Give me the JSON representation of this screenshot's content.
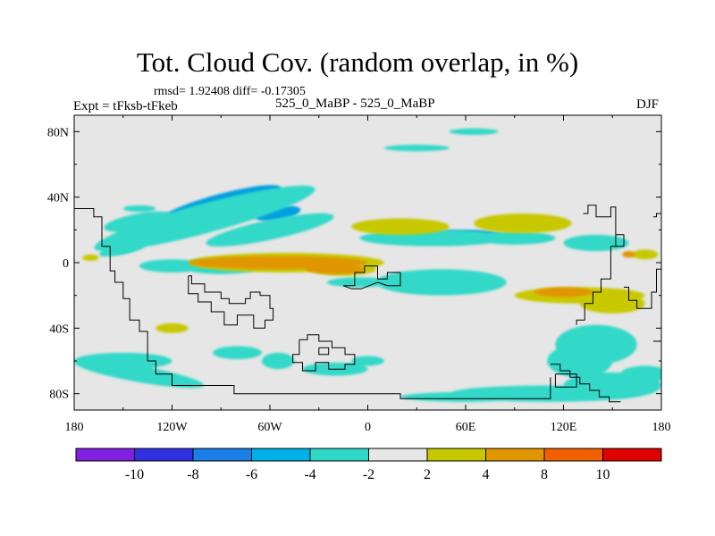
{
  "title": "Tot. Cloud Cov. (random overlap, in %)",
  "stats_line": "rmsd= 1.92408 diff= -0.17305",
  "experiment": "Expt = tFksb-tFkeb",
  "subtitle": "525_0_MaBP - 525_0_MaBP",
  "season": "DJF",
  "map": {
    "projection": "cylindrical-equidistant",
    "background_color": "#e6e6e6",
    "lon_range": [
      -180,
      180
    ],
    "lat_range": [
      -90,
      90
    ],
    "x_ticks": [
      {
        "value": -180,
        "label": "180"
      },
      {
        "value": -120,
        "label": "120W"
      },
      {
        "value": -60,
        "label": "60W"
      },
      {
        "value": 0,
        "label": "0"
      },
      {
        "value": 60,
        "label": "60E"
      },
      {
        "value": 120,
        "label": "120E"
      },
      {
        "value": 180,
        "label": "180"
      }
    ],
    "y_ticks": [
      {
        "value": 80,
        "label": "80N"
      },
      {
        "value": 40,
        "label": "40N"
      },
      {
        "value": 0,
        "label": "0"
      },
      {
        "value": -40,
        "label": "40S"
      },
      {
        "value": -80,
        "label": "80S"
      }
    ],
    "coastlines": [
      [
        [
          -180,
          33
        ],
        [
          -168,
          33
        ],
        [
          -168,
          28
        ],
        [
          -163,
          28
        ],
        [
          -163,
          10
        ],
        [
          -158,
          10
        ],
        [
          -158,
          -5
        ],
        [
          -155,
          -5
        ],
        [
          -155,
          -12
        ],
        [
          -150,
          -12
        ],
        [
          -150,
          -22
        ],
        [
          -146,
          -22
        ],
        [
          -146,
          -35
        ],
        [
          -140,
          -35
        ],
        [
          -140,
          -42
        ],
        [
          -135,
          -42
        ],
        [
          -135,
          -60
        ],
        [
          -130,
          -60
        ],
        [
          -130,
          -68
        ],
        [
          -120,
          -68
        ],
        [
          -120,
          -75
        ],
        [
          -82,
          -75
        ],
        [
          -82,
          -80
        ],
        [
          20,
          -80
        ],
        [
          20,
          -83
        ],
        [
          112,
          -83
        ],
        [
          112,
          -70
        ]
      ],
      [
        [
          -110,
          -8
        ],
        [
          -108,
          -8
        ],
        [
          -108,
          -13
        ],
        [
          -100,
          -13
        ],
        [
          -100,
          -18
        ],
        [
          -90,
          -18
        ],
        [
          -90,
          -22
        ],
        [
          -85,
          -22
        ],
        [
          -85,
          -25
        ],
        [
          -75,
          -25
        ],
        [
          -75,
          -22
        ],
        [
          -72,
          -22
        ],
        [
          -72,
          -18
        ],
        [
          -66,
          -18
        ],
        [
          -66,
          -20
        ],
        [
          -60,
          -20
        ],
        [
          -60,
          -28
        ],
        [
          -58,
          -28
        ],
        [
          -58,
          -35
        ],
        [
          -63,
          -35
        ],
        [
          -63,
          -40
        ],
        [
          -70,
          -40
        ],
        [
          -70,
          -32
        ],
        [
          -80,
          -32
        ],
        [
          -80,
          -38
        ],
        [
          -88,
          -38
        ],
        [
          -88,
          -30
        ],
        [
          -96,
          -30
        ],
        [
          -96,
          -24
        ],
        [
          -104,
          -24
        ],
        [
          -104,
          -19
        ],
        [
          -110,
          -19
        ],
        [
          -110,
          -8
        ]
      ],
      [
        [
          -42,
          -47
        ],
        [
          -37,
          -47
        ],
        [
          -37,
          -44
        ],
        [
          -30,
          -44
        ],
        [
          -30,
          -48
        ],
        [
          -22,
          -48
        ],
        [
          -22,
          -52
        ],
        [
          -14,
          -52
        ],
        [
          -14,
          -56
        ],
        [
          -8,
          -56
        ],
        [
          -8,
          -62
        ],
        [
          -14,
          -62
        ],
        [
          -14,
          -65
        ],
        [
          -24,
          -65
        ],
        [
          -24,
          -61
        ],
        [
          -32,
          -61
        ],
        [
          -32,
          -66
        ],
        [
          -40,
          -66
        ],
        [
          -40,
          -61
        ],
        [
          -46,
          -61
        ],
        [
          -46,
          -56
        ],
        [
          -42,
          -56
        ],
        [
          -42,
          -47
        ]
      ],
      [
        [
          -30,
          -52
        ],
        [
          -24,
          -52
        ],
        [
          -24,
          -56
        ],
        [
          -30,
          -56
        ],
        [
          -30,
          -52
        ]
      ],
      [
        [
          -15,
          -14
        ],
        [
          -8,
          -14
        ],
        [
          -8,
          -6
        ],
        [
          -2,
          -6
        ],
        [
          -2,
          -2
        ],
        [
          6,
          -2
        ],
        [
          6,
          -10
        ],
        [
          12,
          -10
        ],
        [
          12,
          -6
        ],
        [
          20,
          -6
        ],
        [
          20,
          -14
        ],
        [
          12,
          -14
        ],
        [
          6,
          -12
        ],
        [
          -4,
          -16
        ],
        [
          -10,
          -16
        ],
        [
          -15,
          -14
        ]
      ],
      [
        [
          132,
          30
        ],
        [
          135,
          30
        ],
        [
          135,
          35
        ],
        [
          140,
          35
        ],
        [
          140,
          28
        ],
        [
          149,
          28
        ],
        [
          149,
          34
        ],
        [
          152,
          34
        ],
        [
          152,
          10
        ],
        [
          149,
          10
        ],
        [
          149,
          -10
        ],
        [
          143,
          -10
        ],
        [
          143,
          -18
        ],
        [
          138,
          -18
        ],
        [
          138,
          -25
        ],
        [
          133,
          -25
        ],
        [
          133,
          -35
        ],
        [
          128,
          -35
        ],
        [
          128,
          -38
        ]
      ],
      [
        [
          152,
          17
        ],
        [
          157,
          17
        ],
        [
          157,
          10
        ],
        [
          152,
          10
        ]
      ],
      [
        [
          157,
          -15
        ],
        [
          160,
          -15
        ],
        [
          160,
          -23
        ],
        [
          165,
          -23
        ],
        [
          165,
          -28
        ],
        [
          174,
          -28
        ],
        [
          174,
          -18
        ],
        [
          177,
          -18
        ],
        [
          177,
          -4
        ],
        [
          180,
          -4
        ]
      ],
      [
        [
          175,
          28
        ],
        [
          177,
          28
        ],
        [
          177,
          30
        ],
        [
          180,
          30
        ]
      ],
      [
        [
          112,
          -62
        ],
        [
          118,
          -62
        ],
        [
          118,
          -66
        ],
        [
          124,
          -66
        ],
        [
          124,
          -70
        ],
        [
          130,
          -70
        ],
        [
          130,
          -74
        ],
        [
          136,
          -74
        ],
        [
          136,
          -78
        ],
        [
          142,
          -78
        ],
        [
          142,
          -82
        ],
        [
          148,
          -82
        ],
        [
          148,
          -85
        ],
        [
          155,
          -85
        ]
      ],
      [
        [
          115,
          -68
        ],
        [
          128,
          -68
        ],
        [
          128,
          -76
        ],
        [
          115,
          -76
        ],
        [
          115,
          -68
        ]
      ],
      [
        [
          175,
          -48
        ],
        [
          180,
          -48
        ]
      ]
    ]
  },
  "contour_fields": [
    {
      "level": "-6_-4",
      "color": "#00a0e0",
      "shapes": [
        [
          -90,
          36,
          38,
          6,
          -15
        ],
        [
          -55,
          30,
          14,
          4,
          -10
        ],
        [
          -150,
          8,
          8,
          2,
          -10
        ],
        [
          -68,
          20,
          8,
          3,
          -15
        ],
        [
          60,
          17,
          22,
          3,
          0
        ],
        [
          40,
          -13,
          20,
          4,
          0
        ],
        [
          38,
          -13,
          10,
          2,
          0
        ],
        [
          130,
          -49,
          6,
          3,
          0
        ]
      ]
    },
    {
      "level": "-4_-2",
      "color": "#30d8c8",
      "shapes": [
        [
          -100,
          27,
          70,
          9,
          -15
        ],
        [
          -60,
          20,
          40,
          6,
          -12
        ],
        [
          -140,
          25,
          22,
          5,
          -10
        ],
        [
          -150,
          8,
          15,
          3,
          -12
        ],
        [
          40,
          15,
          45,
          5,
          0
        ],
        [
          90,
          15,
          25,
          4,
          0
        ],
        [
          140,
          12,
          20,
          5,
          0
        ],
        [
          45,
          -12,
          40,
          8,
          0
        ],
        [
          -140,
          33,
          10,
          2,
          0
        ],
        [
          -5,
          -12,
          20,
          3,
          0
        ],
        [
          65,
          80,
          15,
          2,
          0
        ],
        [
          30,
          70,
          20,
          2,
          0
        ],
        [
          -150,
          -60,
          30,
          5,
          0
        ],
        [
          -140,
          -68,
          40,
          5,
          10
        ],
        [
          -80,
          -55,
          15,
          4,
          0
        ],
        [
          -55,
          -60,
          10,
          5,
          0
        ],
        [
          -20,
          -65,
          20,
          4,
          0
        ],
        [
          0,
          -60,
          10,
          3,
          0
        ],
        [
          140,
          -50,
          25,
          12,
          0
        ],
        [
          130,
          -60,
          20,
          10,
          0
        ],
        [
          110,
          -80,
          60,
          5,
          0
        ],
        [
          60,
          -82,
          40,
          3,
          0
        ],
        [
          150,
          -75,
          30,
          8,
          0
        ],
        [
          170,
          -68,
          15,
          5,
          0
        ],
        [
          -120,
          -2,
          20,
          4,
          0
        ],
        [
          -90,
          -2,
          25,
          5,
          0
        ]
      ]
    },
    {
      "level": "2_4",
      "color": "#c8c800",
      "shapes": [
        [
          -50,
          0,
          60,
          6,
          0
        ],
        [
          -15,
          -4,
          20,
          4,
          0
        ],
        [
          20,
          22,
          30,
          5,
          0
        ],
        [
          95,
          24,
          30,
          6,
          0
        ],
        [
          130,
          -20,
          40,
          5,
          0
        ],
        [
          -170,
          3,
          5,
          2,
          0
        ],
        [
          150,
          -25,
          20,
          6,
          0
        ],
        [
          -120,
          -40,
          10,
          3,
          0
        ],
        [
          170,
          5,
          8,
          3,
          0
        ]
      ]
    },
    {
      "level": "4_8",
      "color": "#e09600",
      "shapes": [
        [
          -55,
          0,
          55,
          4,
          0
        ],
        [
          -20,
          -4,
          18,
          3,
          0
        ],
        [
          120,
          -18,
          18,
          3,
          0
        ],
        [
          160,
          5,
          4,
          2,
          0
        ]
      ]
    }
  ],
  "colorbar": {
    "colors": [
      "#8020e0",
      "#3030e0",
      "#1a80e8",
      "#00b0e8",
      "#30d8c8",
      "#e6e6e6",
      "#c8c800",
      "#e09600",
      "#f06000",
      "#e00000"
    ],
    "labels": [
      "-10",
      "-8",
      "-6",
      "-4",
      "-2",
      "2",
      "4",
      "8",
      "10"
    ]
  }
}
